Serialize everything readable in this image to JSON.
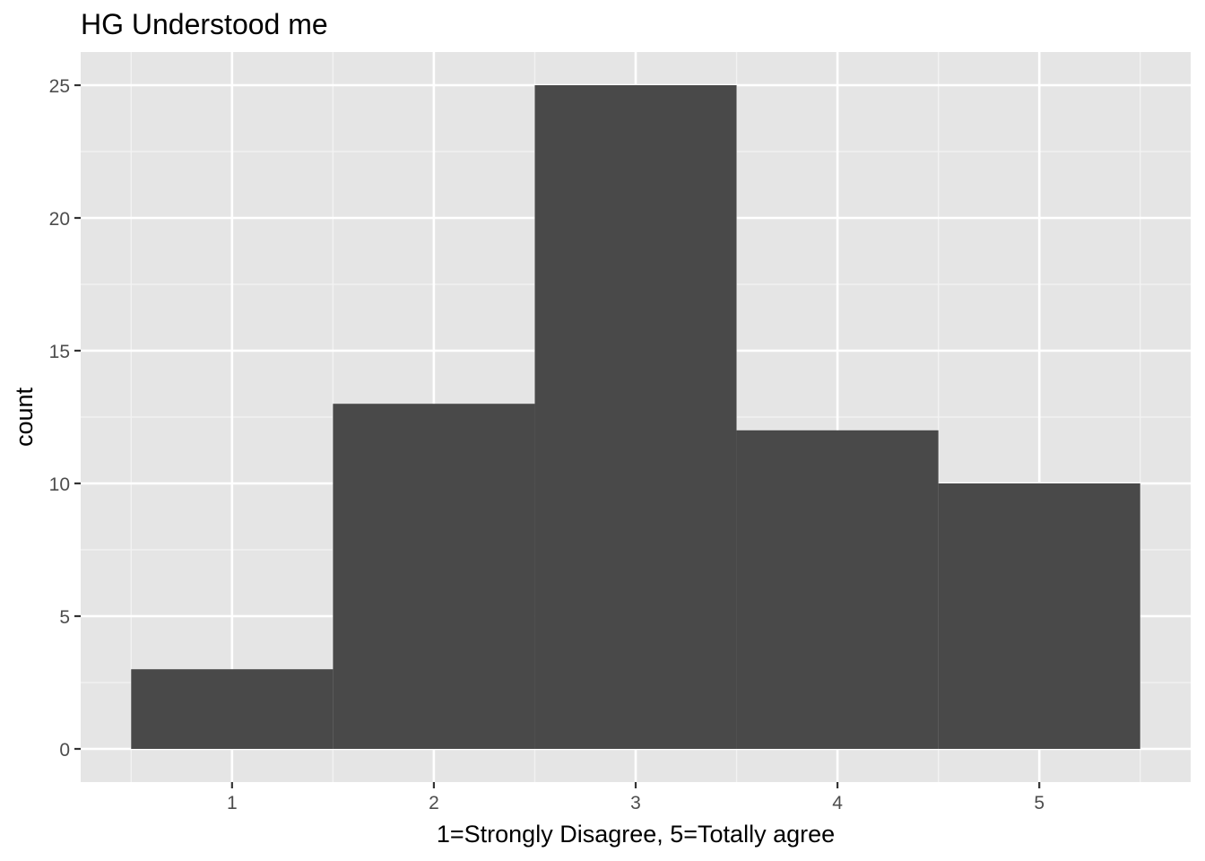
{
  "chart_data": {
    "type": "bar",
    "title": "HG Understood me",
    "xlabel": "1=Strongly Disagree, 5=Totally agree",
    "ylabel": "count",
    "categories": [
      1,
      2,
      3,
      4,
      5
    ],
    "values": [
      3,
      13,
      25,
      12,
      10
    ],
    "xlim": [
      0.25,
      5.75
    ],
    "ylim": [
      -1.25,
      26.25
    ],
    "xticks": [
      1,
      2,
      3,
      4,
      5
    ],
    "yticks": [
      0,
      5,
      10,
      15,
      20,
      25
    ],
    "grid": true,
    "colors": {
      "panel": "#e5e5e5",
      "grid_major": "#ffffff",
      "grid_minor": "#f2f2f2",
      "bar": "#494949",
      "text": "#000000",
      "tick_text": "#4d4d4d",
      "tick": "#333333"
    }
  }
}
